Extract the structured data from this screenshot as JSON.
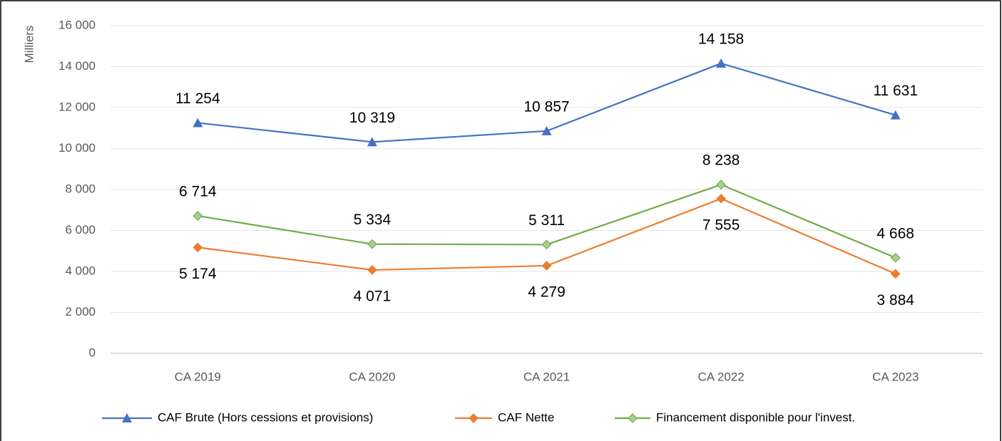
{
  "chart_data": {
    "type": "line",
    "y_label": "Milliers",
    "categories": [
      "CA 2019",
      "CA 2020",
      "CA 2021",
      "CA 2022",
      "CA 2023"
    ],
    "series": [
      {
        "name": "CAF Brute (Hors cessions et provisions)",
        "color": "#4472c4",
        "marker": "triangle",
        "label_position": "above",
        "values": [
          11254,
          10319,
          10857,
          14158,
          11631
        ],
        "value_labels": [
          "11 254",
          "10 319",
          "10 857",
          "14 158",
          "11 631"
        ]
      },
      {
        "name": "CAF Nette",
        "color": "#ed7d31",
        "marker": "diamond",
        "label_position": "below",
        "values": [
          5174,
          4071,
          4279,
          7555,
          3884
        ],
        "value_labels": [
          "5 174",
          "4 071",
          "4 279",
          "7 555",
          "3 884"
        ]
      },
      {
        "name": "Financement disponible pour l'invest.",
        "color": "#70ad47",
        "marker": "diamond",
        "label_position": "above",
        "values": [
          6714,
          5334,
          5311,
          8238,
          4668
        ],
        "value_labels": [
          "6 714",
          "5 334",
          "5 311",
          "8 238",
          "4 668"
        ]
      }
    ],
    "ylim": [
      0,
      16000
    ],
    "yticks": [
      {
        "value": 0,
        "label": "0"
      },
      {
        "value": 2000,
        "label": "2 000"
      },
      {
        "value": 4000,
        "label": "4 000"
      },
      {
        "value": 6000,
        "label": "6 000"
      },
      {
        "value": 8000,
        "label": "8 000"
      },
      {
        "value": 10000,
        "label": "10 000"
      },
      {
        "value": 12000,
        "label": "12 000"
      },
      {
        "value": 14000,
        "label": "14 000"
      },
      {
        "value": 16000,
        "label": "16 000"
      }
    ],
    "grid": true,
    "legend": "bottom"
  }
}
